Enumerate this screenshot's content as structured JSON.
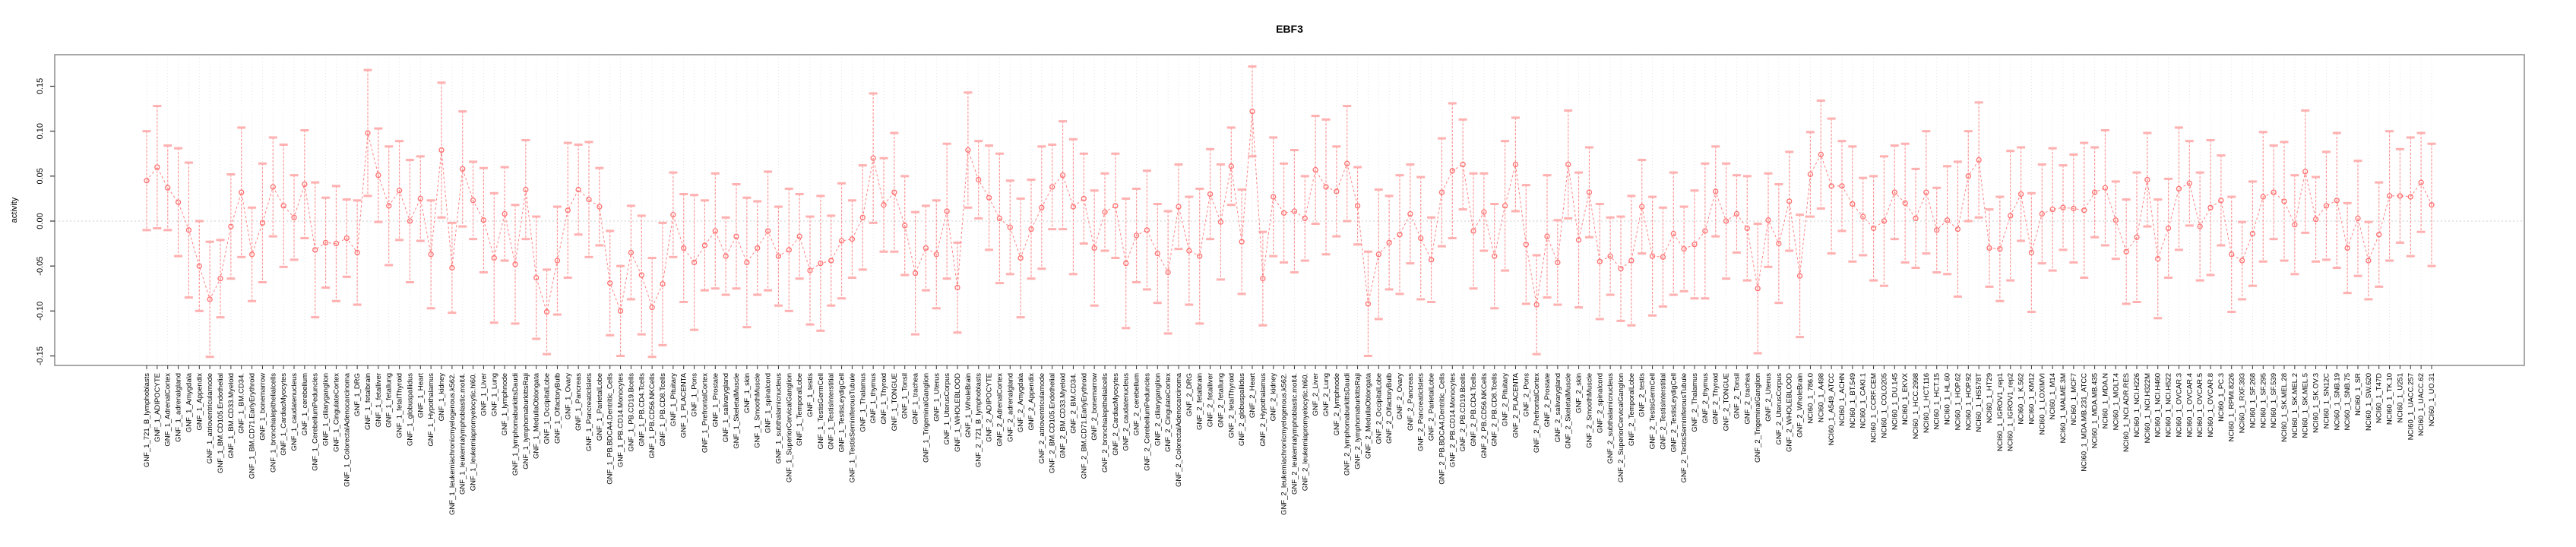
{
  "chart_data": {
    "type": "line",
    "subtype": "points-with-error-bars",
    "title": "EBF3",
    "ylabel": "activity",
    "xlabel": "",
    "ylim": [
      -0.15,
      0.15
    ],
    "yticks": [
      "0.15",
      "0.10",
      "0.05",
      "0.00",
      "-0.05",
      "-0.10",
      "-0.15"
    ],
    "ytick_values": [
      0.15,
      0.1,
      0.05,
      0.0,
      -0.05,
      -0.1,
      -0.15
    ],
    "grid": "vertical-dotted-per-category-plus-zero-line",
    "legend": "none",
    "point_color": "#ff7070",
    "line_color": "#ff8080",
    "whisker_color": "#ff9898",
    "cap_color": "#ffb0b0",
    "grid_color": "#e0e0e0",
    "zero_line_color": "#cccccc",
    "box_color": "#8c8c8c",
    "categories": [
      "GNF_1_721_B_lymphoblasts",
      "GNF_1_ADIPOCYTE",
      "GNF_1_AdrenalCortex",
      "GNF_1_adrenalgland",
      "GNF_1_Amygdala",
      "GNF_1_Appendix",
      "GNF_1_atrioventricularnode",
      "GNF_1_BM.CD105.Endothelial",
      "GNF_1_BM.CD33.Myeloid",
      "GNF_1_BM.CD34.",
      "GNF_1_BM.CD71.EarlyErythroid",
      "GNF_1_bonemarrow",
      "GNF_1_bronchialepithelialcells",
      "GNF_1_CardiacMyocytes",
      "GNF_1_caudatenucleus",
      "GNF_1_cerebellum",
      "GNF_1_CerebellumPeduncles",
      "GNF_1_ciliaryganglion",
      "GNF_1_CingulateCortex",
      "GNF_1_ColorectalAdenocarcinoma",
      "GNF_1_DRG",
      "GNF_1_fetalbrain",
      "GNF_1_fetalliver",
      "GNF_1_fetallung",
      "GNF_1_fetalThyroid",
      "GNF_1_globuspallidus",
      "GNF_1_Heart",
      "GNF_1_Hypothalamus",
      "GNF_1_kidney",
      "GNF_1_leukemiachronicmyelogenous.k562.",
      "GNF_1_leukemialymphoblastic.molt4.",
      "GNF_1_leukemiapromyelocytic.hl60.",
      "GNF_1_Liver",
      "GNF_1_Lung",
      "GNF_1_lymphnode",
      "GNF_1_lymphomaburkittsDaudi",
      "GNF_1_lymphomaburkittsRaji",
      "GNF_1_MedullaOblongata",
      "GNF_1_OccipitalLobe",
      "GNF_1_OlfactoryBulb",
      "GNF_1_Ovary",
      "GNF_1_Pancreas",
      "GNF_1_PancreaticIslets",
      "GNF_1_ParietalLobe",
      "GNF_1_PB.BDCA4.Dentritic_Cells",
      "GNF_1_PB.CD14.Monocytes",
      "GNF_1_PB.CD19.Bcells",
      "GNF_1_PB.CD4.Tcells",
      "GNF_1_PB.CD56.NKCells",
      "GNF_1_PB.CD8.Tcells",
      "GNF_1_Pituitary",
      "GNF_1_PLACENTA",
      "GNF_1_Pons",
      "GNF_1_PrefrontalCortex",
      "GNF_1_Prostate",
      "GNF_1_salivarygland",
      "GNF_1_SkeletalMuscle",
      "GNF_1_skin",
      "GNF_1_SmoothMuscle",
      "GNF_1_spinalcord",
      "GNF_1_subthalamicnucleus",
      "GNF_1_SuperiorCervicalGanglion",
      "GNF_1_TemporalLobe",
      "GNF_1_testis",
      "GNF_1_TestisGermCell",
      "GNF_1_TestisInterstitial",
      "GNF_1_TestisLeydigCell",
      "GNF_1_TestisSeminiferousTubule",
      "GNF_1_Thalamus",
      "GNF_1_thymus",
      "GNF_1_Thyroid",
      "GNF_1_TONGUE",
      "GNF_1_Tonsil",
      "GNF_1_trachea",
      "GNF_1_TrigeminalGanglion",
      "GNF_1_Uterus",
      "GNF_1_UterusCorpus",
      "GNF_1_WHOLEBLOOD",
      "GNF_1_WholeBrain",
      "GNF_2_721_B_lymphoblasts",
      "GNF_2_ADIPOCYTE",
      "GNF_2_AdrenalCortex",
      "GNF_2_adrenalgland",
      "GNF_2_Amygdala",
      "GNF_2_Appendix",
      "GNF_2_atrioventricularnode",
      "GNF_2_BM.CD105.Endothelial",
      "GNF_2_BM.CD33.Myeloid",
      "GNF_2_BM.CD34.",
      "GNF_2_BM.CD71.EarlyErythroid",
      "GNF_2_bonemarrow",
      "GNF_2_bronchialepithelialcells",
      "GNF_2_CardiacMyocytes",
      "GNF_2_caudatenucleus",
      "GNF_2_cerebellum",
      "GNF_2_CerebellumPeduncles",
      "GNF_2_ciliaryganglion",
      "GNF_2_CingulateCortex",
      "GNF_2_ColorectalAdenocarcinoma",
      "GNF_2_DRG",
      "GNF_2_fetalbrain",
      "GNF_2_fetalliver",
      "GNF_2_fetallung",
      "GNF_2_fetalThyroid",
      "GNF_2_globuspallidus",
      "GNF_2_Heart",
      "GNF_2_Hypothalamus",
      "GNF_2_kidney",
      "GNF_2_leukemiachronicmyelogenous.k562.",
      "GNF_2_leukemialymphoblastic.molt4.",
      "GNF_2_leukemiapromyelocytic.hl60.",
      "GNF_2_Liver",
      "GNF_2_Lung",
      "GNF_2_lymphnode",
      "GNF_2_lymphomaburkittsDaudi",
      "GNF_2_lymphomaburkittsRaji",
      "GNF_2_MedullaOblongata",
      "GNF_2_OccipitalLobe",
      "GNF_2_OlfactoryBulb",
      "GNF_2_Ovary",
      "GNF_2_Pancreas",
      "GNF_2_PancreaticIslets",
      "GNF_2_ParietalLobe",
      "GNF_2_PB.BDCA4.Dentritic_Cells",
      "GNF_2_PB.CD14.Monocytes",
      "GNF_2_PB.CD19.Bcells",
      "GNF_2_PB.CD4.Tcells",
      "GNF_2_PB.CD56.NKCells",
      "GNF_2_PB.CD8.Tcells",
      "GNF_2_Pituitary",
      "GNF_2_PLACENTA",
      "GNF_2_Pons",
      "GNF_2_PrefrontalCortex",
      "GNF_2_Prostate",
      "GNF_2_salivarygland",
      "GNF_2_SkeletalMuscle",
      "GNF_2_skin",
      "GNF_2_SmoothMuscle",
      "GNF_2_spinalcord",
      "GNF_2_subthalamicnucleus",
      "GNF_2_SuperiorCervicalGanglion",
      "GNF_2_TemporalLobe",
      "GNF_2_testis",
      "GNF_2_TestisGermCell",
      "GNF_2_TestisInterstitial",
      "GNF_2_TestisLeydigCell",
      "GNF_2_TestisSeminiferousTubule",
      "GNF_2_Thalamus",
      "GNF_2_thymus",
      "GNF_2_Thyroid",
      "GNF_2_TONGUE",
      "GNF_2_Tonsil",
      "GNF_2_trachea",
      "GNF_2_TrigeminalGanglion",
      "GNF_2_Uterus",
      "GNF_2_UterusCorpus",
      "GNF_2_WHOLEBLOOD",
      "GNF_2_WholeBrain",
      "NCI60_1_786.0",
      "NCI60_1_A498",
      "NCI60_1_A549_ATCC",
      "NCI60_1_ACHN",
      "NCI60_1_BT.549",
      "NCI60_1_CAKI.1",
      "NCI60_1_CCRF.CEM",
      "NCI60_1_COLO205",
      "NCI60_1_DU.145",
      "NCI60_1_EKVX",
      "NCI60_1_HCC.2998",
      "NCI60_1_HCT.116",
      "NCI60_1_HCT.15",
      "NCI60_1_HL.60",
      "NCI60_1_HOP.62",
      "NCI60_1_HOP.92",
      "NCI60_1_HS578T",
      "NCI60_1_HT29",
      "NCI60_1_IGROV1_rep1",
      "NCI60_1_IGROV1_rep2",
      "NCI60_1_K.562",
      "NCI60_1_KM12",
      "NCI60_1_LOXIMVI",
      "NCI60_1_M14",
      "NCI60_1_MALME.3M",
      "NCI60_1_MCF7",
      "NCI60_1_MDA.MB.231_ATCC",
      "NCI60_1_MDA.MB.435",
      "NCI60_1_MDA.N",
      "NCI60_1_MOLT.4",
      "NCI60_1_NCI.ADR.RES",
      "NCI60_1_NCI.H226",
      "NCI60_1_NCI.H322M",
      "NCI60_1_NCI.H460",
      "NCI60_1_NCI.H522",
      "NCI60_1_OVCAR.3",
      "NCI60_1_OVCAR.4",
      "NCI60_1_OVCAR.5",
      "NCI60_1_OVCAR.8",
      "NCI60_1_PC.3",
      "NCI60_1_RPMI.8226",
      "NCI60_1_RXF.393",
      "NCI60_1_SF.268",
      "NCI60_1_SF.295",
      "NCI60_1_SF.539",
      "NCI60_1_SK.MEL.28",
      "NCI60_1_SK.MEL.2",
      "NCI60_1_SK.MEL.5",
      "NCI60_1_SK.OV.3",
      "NCI60_1_SN12C",
      "NCI60_1_SNB.19",
      "NCI60_1_SNB.75",
      "NCI60_1_SR",
      "NCI60_1_SW.620",
      "NCI60_1_T47D",
      "NCI60_1_TK.10",
      "NCI60_1_U251",
      "NCI60_1_UACC.257",
      "NCI60_1_UACC.62",
      "NCI60_1_UO.31"
    ],
    "values": [
      0.045,
      0.06,
      0.037,
      0.021,
      -0.01,
      -0.05,
      -0.087,
      -0.064,
      -0.006,
      0.032,
      -0.037,
      -0.002,
      0.038,
      0.017,
      0.004,
      0.041,
      -0.032,
      -0.024,
      -0.025,
      -0.019,
      -0.035,
      0.098,
      0.051,
      0.017,
      0.034,
      0.0,
      0.025,
      -0.037,
      0.079,
      -0.052,
      0.058,
      0.023,
      0.001,
      -0.041,
      0.008,
      -0.048,
      0.035,
      -0.063,
      -0.101,
      -0.044,
      0.012,
      0.035,
      0.024,
      0.016,
      -0.069,
      -0.1,
      -0.035,
      -0.06,
      -0.096,
      -0.07,
      0.007,
      -0.03,
      -0.046,
      -0.027,
      -0.011,
      -0.039,
      -0.017,
      -0.046,
      -0.03,
      -0.011,
      -0.039,
      -0.032,
      -0.017,
      -0.055,
      -0.047,
      -0.044,
      -0.022,
      -0.02,
      0.004,
      0.07,
      0.018,
      0.032,
      -0.005,
      -0.058,
      -0.03,
      -0.037,
      0.011,
      -0.074,
      0.079,
      0.046,
      0.026,
      0.003,
      -0.007,
      -0.041,
      -0.009,
      0.015,
      0.038,
      0.051,
      0.016,
      0.025,
      -0.03,
      0.01,
      0.017,
      -0.047,
      -0.016,
      -0.01,
      -0.036,
      -0.057,
      0.016,
      -0.033,
      -0.039,
      0.03,
      -0.001,
      0.061,
      -0.023,
      0.122,
      -0.064,
      0.027,
      0.009,
      0.011,
      0.003,
      0.057,
      0.038,
      0.033,
      0.064,
      0.017,
      -0.092,
      -0.037,
      -0.024,
      -0.015,
      0.008,
      -0.019,
      -0.043,
      0.032,
      0.056,
      0.063,
      -0.011,
      0.01,
      -0.039,
      0.017,
      0.063,
      -0.026,
      -0.093,
      -0.017,
      -0.046,
      0.063,
      -0.021,
      0.032,
      -0.045,
      -0.039,
      -0.053,
      -0.044,
      0.016,
      -0.039,
      -0.04,
      -0.014,
      -0.031,
      -0.026,
      -0.011,
      0.033,
      0.0,
      0.008,
      -0.008,
      -0.075,
      0.001,
      -0.025,
      0.022,
      -0.061,
      0.052,
      0.074,
      0.039,
      0.039,
      0.019,
      0.005,
      -0.008,
      0.0,
      0.032,
      0.02,
      0.003,
      0.032,
      -0.01,
      0.001,
      -0.009,
      0.05,
      0.068,
      -0.03,
      -0.031,
      0.006,
      0.03,
      -0.035,
      0.008,
      0.013,
      0.015,
      0.014,
      0.012,
      0.032,
      0.037,
      0.001,
      -0.034,
      -0.018,
      0.046,
      -0.042,
      -0.008,
      0.036,
      0.042,
      -0.006,
      0.015,
      0.023,
      -0.037,
      -0.044,
      -0.014,
      0.027,
      0.032,
      0.022,
      -0.004,
      0.055,
      0.002,
      0.017,
      0.023,
      -0.03,
      0.003,
      -0.044,
      -0.015,
      0.028,
      0.028,
      0.027,
      0.043,
      0.018
    ],
    "ci": [
      0.055,
      0.068,
      0.047,
      0.06,
      0.075,
      0.05,
      0.064,
      0.043,
      0.058,
      0.072,
      0.052,
      0.066,
      0.055,
      0.068,
      0.047,
      0.06,
      0.075,
      0.05,
      0.064,
      0.043,
      0.058,
      0.07,
      0.052,
      0.066,
      0.055,
      0.068,
      0.047,
      0.06,
      0.075,
      0.05,
      0.064,
      0.043,
      0.058,
      0.072,
      0.052,
      0.066,
      0.055,
      0.068,
      0.047,
      0.06,
      0.075,
      0.05,
      0.064,
      0.043,
      0.058,
      0.05,
      0.052,
      0.066,
      0.055,
      0.068,
      0.047,
      0.06,
      0.075,
      0.05,
      0.064,
      0.043,
      0.058,
      0.072,
      0.052,
      0.066,
      0.055,
      0.068,
      0.047,
      0.06,
      0.075,
      0.05,
      0.064,
      0.043,
      0.058,
      0.072,
      0.052,
      0.066,
      0.055,
      0.068,
      0.047,
      0.06,
      0.075,
      0.05,
      0.064,
      0.043,
      0.058,
      0.072,
      0.052,
      0.066,
      0.055,
      0.068,
      0.047,
      0.06,
      0.075,
      0.05,
      0.064,
      0.043,
      0.058,
      0.072,
      0.052,
      0.066,
      0.055,
      0.068,
      0.047,
      0.06,
      0.075,
      0.05,
      0.064,
      0.043,
      0.058,
      0.05,
      0.052,
      0.066,
      0.055,
      0.068,
      0.047,
      0.06,
      0.075,
      0.05,
      0.064,
      0.043,
      0.058,
      0.072,
      0.052,
      0.066,
      0.055,
      0.068,
      0.047,
      0.06,
      0.075,
      0.05,
      0.064,
      0.043,
      0.058,
      0.072,
      0.052,
      0.066,
      0.055,
      0.068,
      0.047,
      0.06,
      0.075,
      0.05,
      0.064,
      0.043,
      0.058,
      0.072,
      0.052,
      0.066,
      0.055,
      0.068,
      0.047,
      0.06,
      0.075,
      0.05,
      0.064,
      0.043,
      0.058,
      0.072,
      0.052,
      0.066,
      0.055,
      0.068,
      0.047,
      0.06,
      0.075,
      0.05,
      0.064,
      0.043,
      0.058,
      0.072,
      0.052,
      0.066,
      0.055,
      0.068,
      0.047,
      0.06,
      0.075,
      0.05,
      0.064,
      0.043,
      0.058,
      0.072,
      0.052,
      0.066,
      0.055,
      0.068,
      0.047,
      0.06,
      0.075,
      0.05,
      0.064,
      0.043,
      0.058,
      0.072,
      0.052,
      0.066,
      0.055,
      0.068,
      0.047,
      0.06,
      0.075,
      0.05,
      0.064,
      0.043,
      0.058,
      0.072,
      0.052,
      0.066,
      0.055,
      0.068,
      0.047,
      0.06,
      0.075,
      0.05,
      0.064,
      0.043,
      0.058,
      0.072,
      0.052,
      0.066,
      0.055,
      0.068
    ]
  }
}
